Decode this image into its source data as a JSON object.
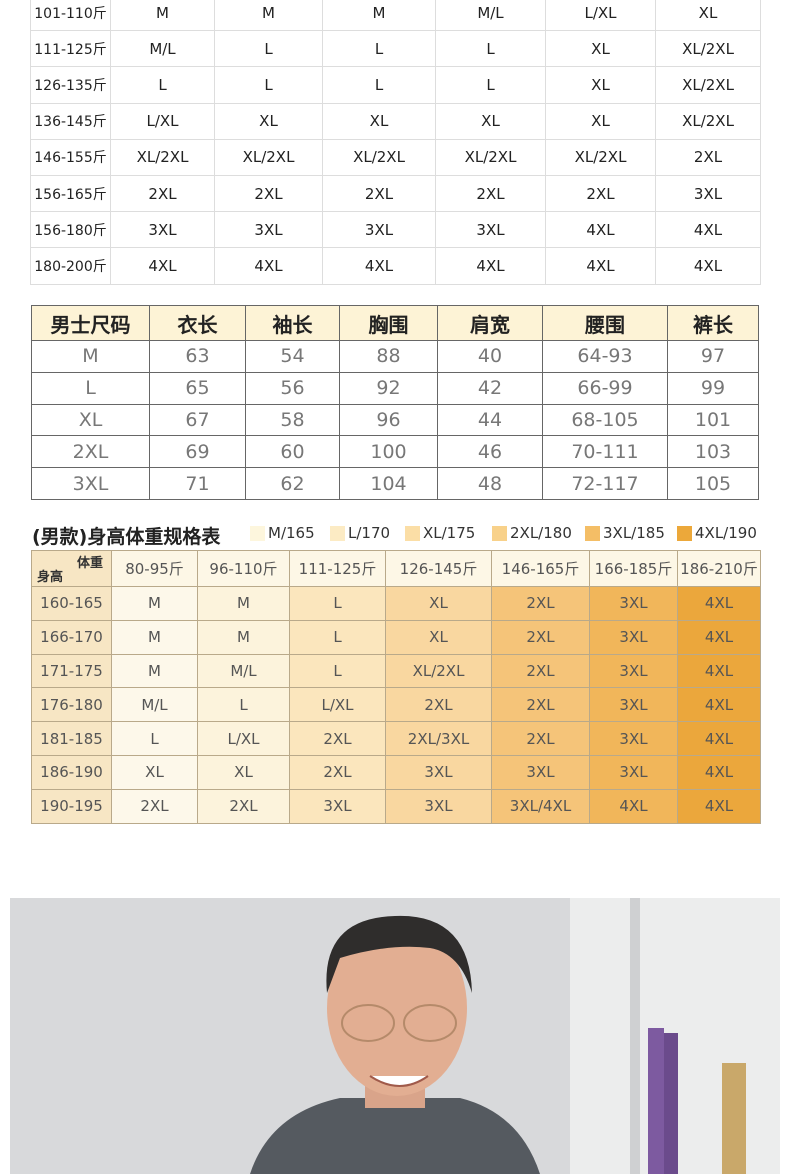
{
  "size_table": {
    "rows": [
      {
        "weight": "101-110斤",
        "sizes": [
          "M",
          "M",
          "M",
          "M/L",
          "L/XL",
          "XL"
        ]
      },
      {
        "weight": "111-125斤",
        "sizes": [
          "M/L",
          "L",
          "L",
          "L",
          "XL",
          "XL/2XL"
        ]
      },
      {
        "weight": "126-135斤",
        "sizes": [
          "L",
          "L",
          "L",
          "L",
          "XL",
          "XL/2XL"
        ]
      },
      {
        "weight": "136-145斤",
        "sizes": [
          "L/XL",
          "XL",
          "XL",
          "XL",
          "XL",
          "XL/2XL"
        ]
      },
      {
        "weight": "146-155斤",
        "sizes": [
          "XL/2XL",
          "XL/2XL",
          "XL/2XL",
          "XL/2XL",
          "XL/2XL",
          "2XL"
        ]
      },
      {
        "weight": "156-165斤",
        "sizes": [
          "2XL",
          "2XL",
          "2XL",
          "2XL",
          "2XL",
          "3XL"
        ]
      },
      {
        "weight": "156-180斤",
        "sizes": [
          "3XL",
          "3XL",
          "3XL",
          "3XL",
          "4XL",
          "4XL"
        ]
      },
      {
        "weight": "180-200斤",
        "sizes": [
          "4XL",
          "4XL",
          "4XL",
          "4XL",
          "4XL",
          "4XL"
        ]
      }
    ]
  },
  "measure_table": {
    "headers": [
      "男士尺码",
      "衣长",
      "袖长",
      "胸围",
      "肩宽",
      "腰围",
      "裤长"
    ],
    "rows": [
      [
        "M",
        63,
        54,
        88,
        40,
        "64-93",
        97
      ],
      [
        "L",
        65,
        56,
        92,
        42,
        "66-99",
        99
      ],
      [
        "XL",
        67,
        58,
        96,
        44,
        "68-105",
        101
      ],
      [
        "2XL",
        69,
        60,
        100,
        46,
        "70-111",
        103
      ],
      [
        "3XL",
        71,
        62,
        104,
        48,
        "72-117",
        105
      ]
    ]
  },
  "height_weight_table": {
    "title": "(男款)身高体重规格表",
    "legend": [
      "M/165",
      "L/170",
      "XL/175",
      "2XL/180",
      "3XL/185",
      "4XL/190"
    ],
    "corner_top": "体重",
    "corner_bottom": "身高",
    "columns": [
      "80-95斤",
      "96-110斤",
      "111-125斤",
      "126-145斤",
      "146-165斤",
      "166-185斤",
      "186-210斤"
    ],
    "rows": [
      {
        "height": "160-165",
        "sizes": [
          "M",
          "M",
          "L",
          "XL",
          "2XL",
          "3XL",
          "4XL"
        ]
      },
      {
        "height": "166-170",
        "sizes": [
          "M",
          "M",
          "L",
          "XL",
          "2XL",
          "3XL",
          "4XL"
        ]
      },
      {
        "height": "171-175",
        "sizes": [
          "M",
          "M/L",
          "L",
          "XL/2XL",
          "2XL",
          "3XL",
          "4XL"
        ]
      },
      {
        "height": "176-180",
        "sizes": [
          "M/L",
          "L",
          "L/XL",
          "2XL",
          "2XL",
          "3XL",
          "4XL"
        ]
      },
      {
        "height": "181-185",
        "sizes": [
          "L",
          "L/XL",
          "2XL",
          "2XL/3XL",
          "2XL",
          "3XL",
          "4XL"
        ]
      },
      {
        "height": "186-190",
        "sizes": [
          "XL",
          "XL",
          "2XL",
          "3XL",
          "3XL",
          "3XL",
          "4XL"
        ]
      },
      {
        "height": "190-195",
        "sizes": [
          "2XL",
          "2XL",
          "3XL",
          "3XL",
          "3XL/4XL",
          "4XL",
          "4XL"
        ]
      }
    ]
  }
}
